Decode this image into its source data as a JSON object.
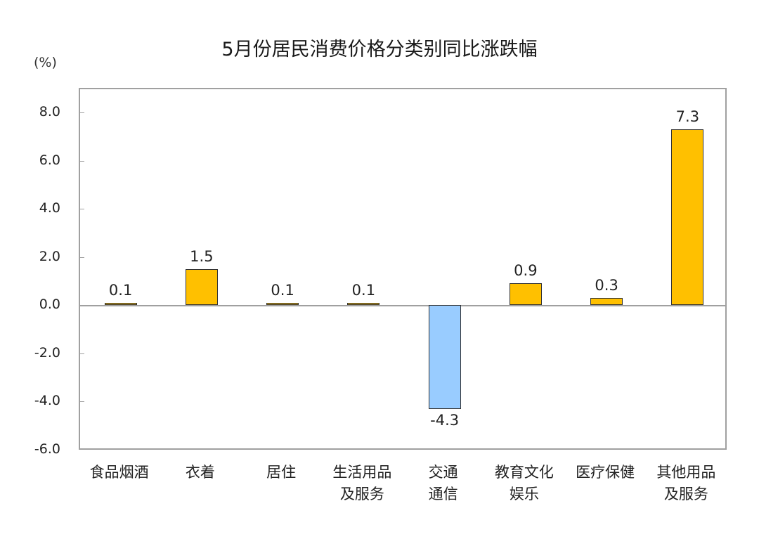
{
  "chart_data": {
    "type": "bar",
    "title": "5月份居民消费价格分类别同比涨跌幅",
    "ylabel": "(%)",
    "xlabel": "",
    "ylim": [
      -6.0,
      8.0
    ],
    "yticks": [
      "8.0",
      "6.0",
      "4.0",
      "2.0",
      "0.0",
      "-2.0",
      "-4.0",
      "-6.0"
    ],
    "grid": false,
    "categories": [
      "食品烟酒",
      "衣着",
      "居住",
      "生活用品及服务",
      "交通通信",
      "教育文化娱乐",
      "医疗保健",
      "其他用品及服务"
    ],
    "category_lines": [
      [
        "食品烟酒"
      ],
      [
        "衣着"
      ],
      [
        "居住"
      ],
      [
        "生活用品",
        "及服务"
      ],
      [
        "交通",
        "通信"
      ],
      [
        "教育文化",
        "娱乐"
      ],
      [
        "医疗保健"
      ],
      [
        "其他用品",
        "及服务"
      ]
    ],
    "values": [
      0.1,
      1.5,
      0.1,
      0.1,
      -4.3,
      0.9,
      0.3,
      7.3
    ],
    "value_labels": [
      "0.1",
      "1.5",
      "0.1",
      "0.1",
      "-4.3",
      "0.9",
      "0.3",
      "7.3"
    ],
    "colors": {
      "positive": "#FFC000",
      "negative": "#99CCFF",
      "border": "#333333",
      "axis": "#A0A0A0"
    }
  }
}
